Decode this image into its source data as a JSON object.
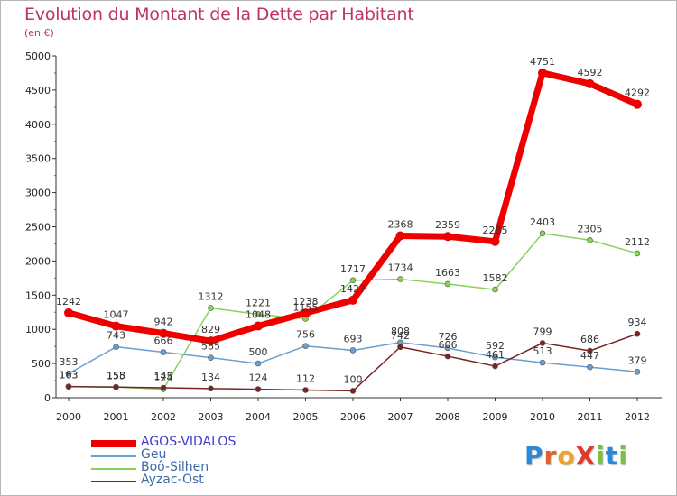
{
  "title": "Evolution du Montant de la Dette par Habitant",
  "subtitle": "(en €)",
  "brand": "ProXiti",
  "chart_data": {
    "type": "line",
    "x": [
      "2000",
      "2001",
      "2002",
      "2003",
      "2004",
      "2005",
      "2006",
      "2007",
      "2008",
      "2009",
      "2010",
      "2011",
      "2012"
    ],
    "ylim": [
      0,
      5000
    ],
    "yticks": [
      0,
      500,
      1000,
      1500,
      2000,
      2500,
      3000,
      3500,
      4000,
      4500,
      5000
    ],
    "grid": false,
    "legend_position": "bottom-left",
    "series": [
      {
        "name": "AGOS-VIDALOS",
        "color": "#ee0000",
        "width": 7,
        "values": [
          1242,
          1047,
          942,
          829,
          1048,
          1238,
          1427,
          2368,
          2359,
          2285,
          4751,
          4592,
          4292
        ],
        "labels": [
          "1242",
          "1047",
          "942",
          "829",
          "1048",
          "1238",
          "1427",
          "2368",
          "2359",
          "2285",
          "4751",
          "4592",
          "4292"
        ]
      },
      {
        "name": "Geu",
        "color": "#6a9fcf",
        "width": 1.5,
        "values": [
          353,
          743,
          666,
          585,
          500,
          756,
          693,
          808,
          726,
          592,
          513,
          447,
          379
        ],
        "labels": [
          "353",
          "743",
          "666",
          "585",
          "500",
          "756",
          "693",
          "808",
          "726",
          "592",
          "513",
          "447",
          "379"
        ]
      },
      {
        "name": "Boô-Silhen",
        "color": "#88d25a",
        "width": 1.5,
        "values": [
          163,
          158,
          124,
          1312,
          1221,
          1155,
          1717,
          1734,
          1663,
          1582,
          2403,
          2305,
          2112
        ],
        "labels": [
          "163",
          "158",
          "124",
          "1312",
          "1221",
          "1155",
          "1717",
          "1734",
          "1663",
          "1582",
          "2403",
          "2305",
          "2112"
        ]
      },
      {
        "name": "Ayzac-Ost",
        "color": "#7a2323",
        "width": 1.5,
        "values": [
          163,
          155,
          145,
          134,
          124,
          112,
          100,
          742,
          606,
          461,
          799,
          686,
          934
        ],
        "labels": [
          "163",
          "155",
          "145",
          "134",
          "124",
          "112",
          "100",
          "742",
          "606",
          "461",
          "799",
          "686",
          "934"
        ]
      }
    ]
  }
}
